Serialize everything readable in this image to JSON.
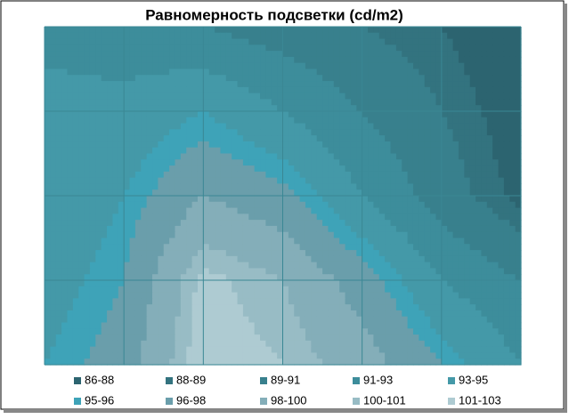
{
  "chart_data": {
    "type": "contour",
    "title": "Равномерность подсветки (cd/m2)",
    "z": [
      [
        92,
        92,
        91,
        90,
        89,
        88,
        86.5
      ],
      [
        94,
        93.5,
        95,
        93,
        91,
        89,
        87
      ],
      [
        93,
        95,
        98,
        96.5,
        93,
        90,
        87.5
      ],
      [
        94,
        96,
        101.5,
        100,
        97,
        93,
        91
      ],
      [
        95,
        97,
        102,
        101,
        99,
        96,
        93
      ]
    ],
    "levels": [
      86,
      88,
      89,
      91,
      93,
      95,
      96,
      98,
      100,
      101,
      103
    ],
    "legend": [
      "86-88",
      "88-89",
      "89-91",
      "91-93",
      "93-95",
      "95-96",
      "96-98",
      "98-100",
      "100-101",
      "101-103"
    ],
    "colors": [
      "#2c6470",
      "#33737f",
      "#38808d",
      "#3d8d9b",
      "#4499a8",
      "#3ea3b8",
      "#6a9eab",
      "#84aeb9",
      "#98bcc5",
      "#aecbd2"
    ],
    "grid": true
  }
}
